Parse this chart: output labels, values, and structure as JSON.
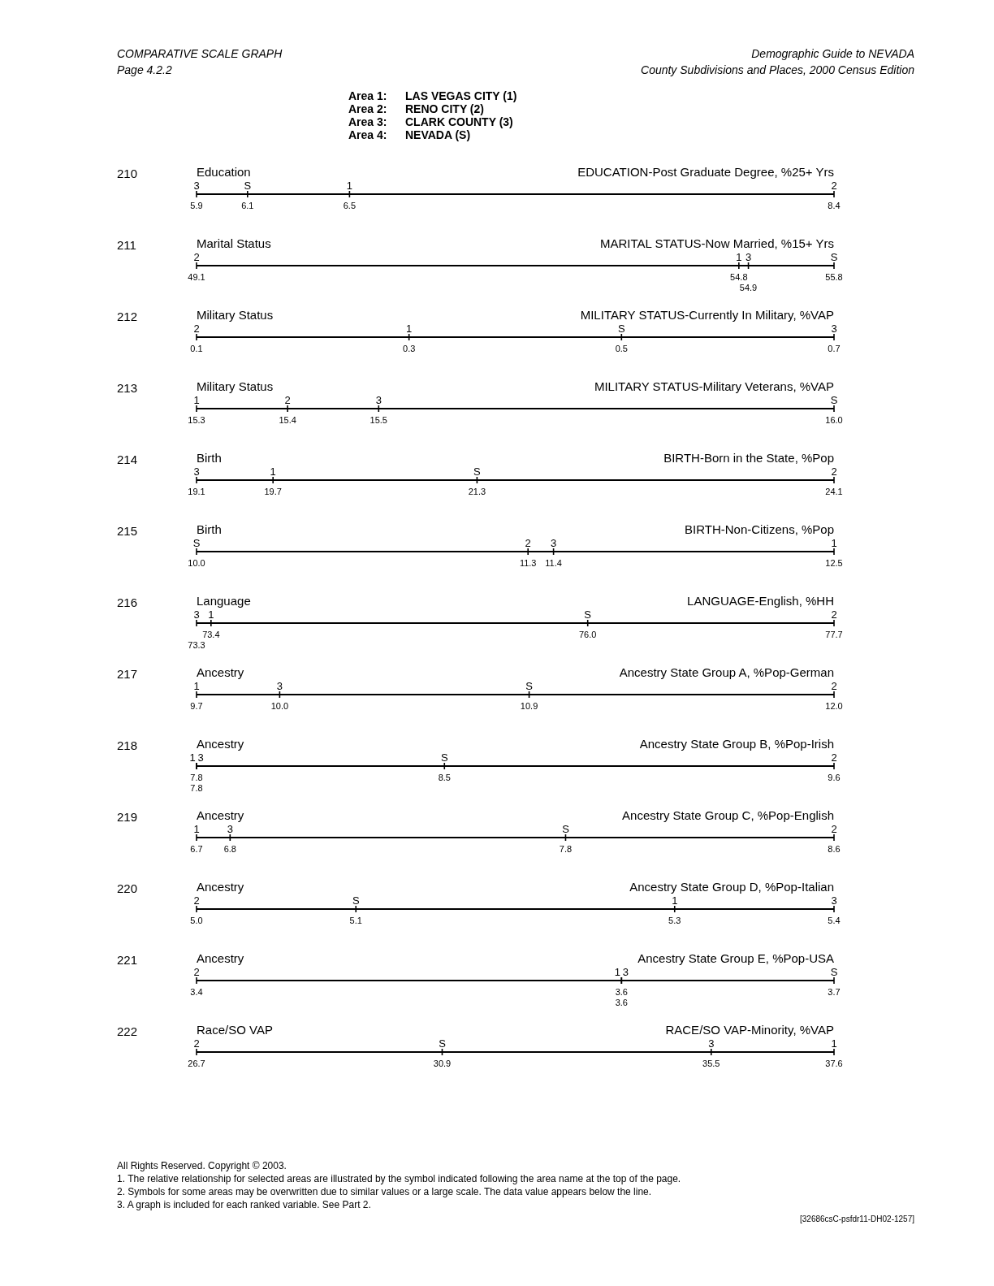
{
  "chart_data": [
    {
      "type": "other",
      "title": "COMPARATIVE SCALE GRAPH",
      "subtitle": "Page 4.2.2",
      "annotations": [
        "Demographic Guide to NEVADA",
        "County Subdivisions and Places, 2000 Census Edition",
        "Area 1:",
        "LAS VEGAS CITY (1)",
        "Area 2:",
        "RENO CITY (2)",
        "Area 3:",
        "CLARK COUNTY (3)",
        "Area 4:",
        "NEVADA (S)"
      ]
    },
    {
      "type": "other",
      "title": "Education",
      "subtitle": "EDUCATION-Post Graduate Degree, %25+ Yrs",
      "annotations": [
        "210"
      ],
      "categories": [
        null
      ],
      "series": [
        {
          "name": "1",
          "color": "#000000",
          "values": [
            6.5
          ],
          "value_labels": [
            "6.5"
          ]
        },
        {
          "name": "2",
          "color": "#000000",
          "values": [
            8.4
          ],
          "value_labels": [
            "8.4"
          ]
        },
        {
          "name": "3",
          "color": "#000000",
          "values": [
            5.9
          ],
          "value_labels": [
            "5.9"
          ]
        },
        {
          "name": "S",
          "color": "#000000",
          "values": [
            6.1
          ],
          "value_labels": [
            "6.1"
          ]
        }
      ]
    },
    {
      "type": "other",
      "title": "Marital Status",
      "subtitle": "MARITAL STATUS-Now Married, %15+ Yrs",
      "annotations": [
        "211"
      ],
      "categories": [
        null
      ],
      "series": [
        {
          "name": "1",
          "color": "#000000",
          "values": [
            54.8
          ],
          "value_labels": [
            "54.8"
          ]
        },
        {
          "name": "2",
          "color": "#000000",
          "values": [
            49.1
          ],
          "value_labels": [
            "49.1"
          ]
        },
        {
          "name": "3",
          "color": "#000000",
          "values": [
            54.9
          ],
          "value_labels": [
            "54.9"
          ]
        },
        {
          "name": "S",
          "color": "#000000",
          "values": [
            55.8
          ],
          "value_labels": [
            "55.8"
          ]
        }
      ]
    },
    {
      "type": "other",
      "title": "Military Status",
      "subtitle": "MILITARY STATUS-Currently In Military, %VAP",
      "annotations": [
        "212"
      ],
      "categories": [
        null
      ],
      "series": [
        {
          "name": "1",
          "color": "#000000",
          "values": [
            0.3
          ],
          "value_labels": [
            "0.3"
          ]
        },
        {
          "name": "2",
          "color": "#000000",
          "values": [
            0.1
          ],
          "value_labels": [
            "0.1"
          ]
        },
        {
          "name": "3",
          "color": "#000000",
          "values": [
            0.7
          ],
          "value_labels": [
            "0.7"
          ]
        },
        {
          "name": "S",
          "color": "#000000",
          "values": [
            0.5
          ],
          "value_labels": [
            "0.5"
          ]
        }
      ]
    },
    {
      "type": "other",
      "title": "Military Status",
      "subtitle": "MILITARY STATUS-Military Veterans, %VAP",
      "annotations": [
        "213"
      ],
      "categories": [
        null
      ],
      "series": [
        {
          "name": "1",
          "color": "#000000",
          "values": [
            15.3
          ],
          "value_labels": [
            "15.3"
          ]
        },
        {
          "name": "2",
          "color": "#000000",
          "values": [
            15.4
          ],
          "value_labels": [
            "15.4"
          ]
        },
        {
          "name": "3",
          "color": "#000000",
          "values": [
            15.5
          ],
          "value_labels": [
            "15.5"
          ]
        },
        {
          "name": "S",
          "color": "#000000",
          "values": [
            16.0
          ],
          "value_labels": [
            "16.0"
          ]
        }
      ]
    },
    {
      "type": "other",
      "title": "Birth",
      "subtitle": "BIRTH-Born in the State, %Pop",
      "annotations": [
        "214"
      ],
      "categories": [
        null
      ],
      "series": [
        {
          "name": "1",
          "color": "#000000",
          "values": [
            19.7
          ],
          "value_labels": [
            "19.7"
          ]
        },
        {
          "name": "2",
          "color": "#000000",
          "values": [
            24.1
          ],
          "value_labels": [
            "24.1"
          ]
        },
        {
          "name": "3",
          "color": "#000000",
          "values": [
            19.1
          ],
          "value_labels": [
            "19.1"
          ]
        },
        {
          "name": "S",
          "color": "#000000",
          "values": [
            21.3
          ],
          "value_labels": [
            "21.3"
          ]
        }
      ]
    },
    {
      "type": "other",
      "title": "Birth",
      "subtitle": "BIRTH-Non-Citizens, %Pop",
      "annotations": [
        "215"
      ],
      "categories": [
        null
      ],
      "series": [
        {
          "name": "1",
          "color": "#000000",
          "values": [
            12.5
          ],
          "value_labels": [
            "12.5"
          ]
        },
        {
          "name": "2",
          "color": "#000000",
          "values": [
            11.3
          ],
          "value_labels": [
            "11.3"
          ]
        },
        {
          "name": "3",
          "color": "#000000",
          "values": [
            11.4
          ],
          "value_labels": [
            "11.4"
          ]
        },
        {
          "name": "S",
          "color": "#000000",
          "values": [
            10.0
          ],
          "value_labels": [
            "10.0"
          ]
        }
      ]
    },
    {
      "type": "other",
      "title": "Language",
      "subtitle": "LANGUAGE-English, %HH",
      "annotations": [
        "216"
      ],
      "categories": [
        null
      ],
      "series": [
        {
          "name": "1",
          "color": "#000000",
          "values": [
            73.4
          ],
          "value_labels": [
            "73.4"
          ]
        },
        {
          "name": "2",
          "color": "#000000",
          "values": [
            77.7
          ],
          "value_labels": [
            "77.7"
          ]
        },
        {
          "name": "3",
          "color": "#000000",
          "values": [
            73.3
          ],
          "value_labels": [
            "73.3"
          ]
        },
        {
          "name": "S",
          "color": "#000000",
          "values": [
            76.0
          ],
          "value_labels": [
            "76.0"
          ]
        }
      ]
    },
    {
      "type": "other",
      "title": "Ancestry",
      "subtitle": "Ancestry State Group A, %Pop-German",
      "annotations": [
        "217"
      ],
      "categories": [
        null
      ],
      "series": [
        {
          "name": "1",
          "color": "#000000",
          "values": [
            9.7
          ],
          "value_labels": [
            "9.7"
          ]
        },
        {
          "name": "2",
          "color": "#000000",
          "values": [
            12.0
          ],
          "value_labels": [
            "12.0"
          ]
        },
        {
          "name": "3",
          "color": "#000000",
          "values": [
            10.0
          ],
          "value_labels": [
            "10.0"
          ]
        },
        {
          "name": "S",
          "color": "#000000",
          "values": [
            10.9
          ],
          "value_labels": [
            "10.9"
          ]
        }
      ]
    },
    {
      "type": "other",
      "title": "Ancestry",
      "subtitle": "Ancestry State Group B, %Pop-Irish",
      "annotations": [
        "218"
      ],
      "categories": [
        null
      ],
      "series": [
        {
          "name": "1",
          "color": "#000000",
          "values": [
            7.8
          ],
          "value_labels": [
            "7.8"
          ]
        },
        {
          "name": "2",
          "color": "#000000",
          "values": [
            9.6
          ],
          "value_labels": [
            "9.6"
          ]
        },
        {
          "name": "3",
          "color": "#000000",
          "values": [
            7.8
          ],
          "value_labels": [
            "7.8"
          ]
        },
        {
          "name": "S",
          "color": "#000000",
          "values": [
            8.5
          ],
          "value_labels": [
            "8.5"
          ]
        }
      ]
    },
    {
      "type": "other",
      "title": "Ancestry",
      "subtitle": "Ancestry State Group C, %Pop-English",
      "annotations": [
        "219"
      ],
      "categories": [
        null
      ],
      "series": [
        {
          "name": "1",
          "color": "#000000",
          "values": [
            6.7
          ],
          "value_labels": [
            "6.7"
          ]
        },
        {
          "name": "2",
          "color": "#000000",
          "values": [
            8.6
          ],
          "value_labels": [
            "8.6"
          ]
        },
        {
          "name": "3",
          "color": "#000000",
          "values": [
            6.8
          ],
          "value_labels": [
            "6.8"
          ]
        },
        {
          "name": "S",
          "color": "#000000",
          "values": [
            7.8
          ],
          "value_labels": [
            "7.8"
          ]
        }
      ]
    },
    {
      "type": "other",
      "title": "Ancestry",
      "subtitle": "Ancestry State Group D, %Pop-Italian",
      "annotations": [
        "220"
      ],
      "categories": [
        null
      ],
      "series": [
        {
          "name": "1",
          "color": "#000000",
          "values": [
            5.3
          ],
          "value_labels": [
            "5.3"
          ]
        },
        {
          "name": "2",
          "color": "#000000",
          "values": [
            5.0
          ],
          "value_labels": [
            "5.0"
          ]
        },
        {
          "name": "3",
          "color": "#000000",
          "values": [
            5.4
          ],
          "value_labels": [
            "5.4"
          ]
        },
        {
          "name": "S",
          "color": "#000000",
          "values": [
            5.1
          ],
          "value_labels": [
            "5.1"
          ]
        }
      ]
    },
    {
      "type": "other",
      "title": "Ancestry",
      "subtitle": "Ancestry State Group E, %Pop-USA",
      "annotations": [
        "221"
      ],
      "categories": [
        null
      ],
      "series": [
        {
          "name": "1",
          "color": "#000000",
          "values": [
            3.6
          ],
          "value_labels": [
            "3.6"
          ]
        },
        {
          "name": "2",
          "color": "#000000",
          "values": [
            3.4
          ],
          "value_labels": [
            "3.4"
          ]
        },
        {
          "name": "3",
          "color": "#000000",
          "values": [
            3.6
          ],
          "value_labels": [
            "3.6"
          ]
        },
        {
          "name": "S",
          "color": "#000000",
          "values": [
            3.7
          ],
          "value_labels": [
            "3.7"
          ]
        }
      ]
    },
    {
      "type": "other",
      "title": "Race/SO VAP",
      "subtitle": "RACE/SO VAP-Minority, %VAP",
      "annotations": [
        "222"
      ],
      "categories": [
        null
      ],
      "series": [
        {
          "name": "1",
          "color": "#000000",
          "values": [
            37.6
          ],
          "value_labels": [
            "37.6"
          ]
        },
        {
          "name": "2",
          "color": "#000000",
          "values": [
            26.7
          ],
          "value_labels": [
            "26.7"
          ]
        },
        {
          "name": "3",
          "color": "#000000",
          "values": [
            35.5
          ],
          "value_labels": [
            "35.5"
          ]
        },
        {
          "name": "S",
          "color": "#000000",
          "values": [
            30.9
          ],
          "value_labels": [
            "30.9"
          ]
        }
      ]
    },
    {
      "type": "other",
      "annotations": [
        "All Rights Reserved. Copyright © 2003.",
        "1. The relative relationship for selected areas are illustrated by the symbol indicated following the area name at the top of the page.",
        "2. Symbols for some areas may be overwritten due to similar values or a large scale. The data value appears below the line.",
        "3. A graph is included for each ranked variable. See Part 2.",
        "[32686csC-psfdr11-DH02-1257]"
      ]
    }
  ]
}
